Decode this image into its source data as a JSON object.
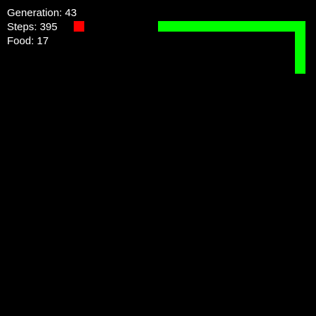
{
  "hud": {
    "generation_label": "Generation: 43",
    "steps_label": "Steps: 395",
    "food_label": "Food: 17"
  },
  "colors": {
    "background": "#000000",
    "text": "#ffffff",
    "snake": "#00ff00",
    "food": "#ff0000"
  },
  "icons": {
    "food": "food-pellet-icon",
    "snake": "snake-body-icon"
  }
}
